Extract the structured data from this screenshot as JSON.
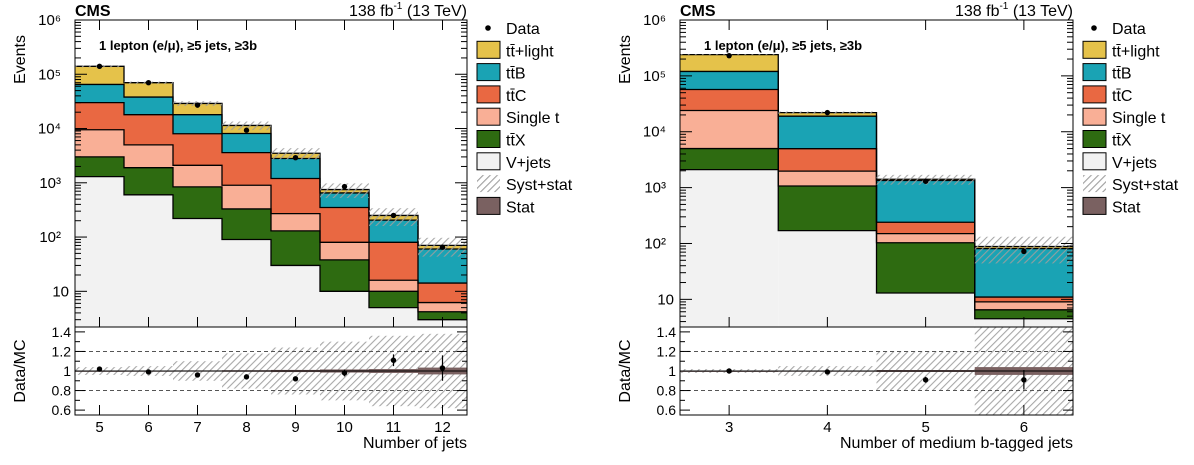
{
  "colors": {
    "ttlight": "#e5c24a",
    "ttB": "#1aa3b4",
    "ttC": "#e96842",
    "single_t": "#f9af96",
    "ttX": "#2e6b11",
    "vjets": "#f2f2f2",
    "syst": "#bdbdbd",
    "stat": "#7a6161"
  },
  "legend": {
    "entries": [
      {
        "key": "data",
        "label": "Data",
        "kind": "marker"
      },
      {
        "key": "ttlight",
        "label": "tt̄+light",
        "kind": "box"
      },
      {
        "key": "ttB",
        "label": "tt̄B",
        "kind": "box"
      },
      {
        "key": "ttC",
        "label": "tt̄C",
        "kind": "box"
      },
      {
        "key": "single_t",
        "label": "Single t",
        "kind": "box"
      },
      {
        "key": "ttX",
        "label": "tt̄X",
        "kind": "box"
      },
      {
        "key": "vjets",
        "label": "V+jets",
        "kind": "box"
      },
      {
        "key": "syst",
        "label": "Syst+stat",
        "kind": "hatch"
      },
      {
        "key": "stat",
        "label": "Stat",
        "kind": "box"
      }
    ]
  },
  "chart_data": [
    {
      "type": "bar",
      "stacked": true,
      "cms_label": "CMS",
      "lumi_label": "138 fb",
      "lumi_exponent": "-1",
      "energy_label": " (13 TeV)",
      "selection_label": "1 lepton (e/μ), ≥5 jets, ≥3b",
      "xlabel": "Number of jets",
      "ylabel": "Events",
      "ratio_ylabel": "Data/MC",
      "log_y": true,
      "ylim": [
        2.2,
        1000000
      ],
      "ratio_ylim": [
        0.55,
        1.45
      ],
      "y_tick_labels": [
        "10",
        "10²",
        "10³",
        "10⁴",
        "10⁵",
        "10⁶"
      ],
      "ratio_tick_labels": [
        "0.6",
        "0.8",
        "1",
        "1.2",
        "1.4"
      ],
      "categories": [
        "5",
        "6",
        "7",
        "8",
        "9",
        "10",
        "11",
        "12"
      ],
      "series": [
        {
          "name": "V+jets",
          "key": "vjets",
          "values": [
            1300,
            600,
            220,
            90,
            30,
            10,
            5,
            3
          ]
        },
        {
          "name": "tt̄X",
          "key": "ttX",
          "values": [
            1700,
            1300,
            620,
            240,
            100,
            28,
            5,
            1.2
          ]
        },
        {
          "name": "Single t",
          "key": "single_t",
          "values": [
            6500,
            3100,
            1260,
            570,
            140,
            42,
            6,
            2
          ]
        },
        {
          "name": "tt̄C",
          "key": "ttC",
          "values": [
            20500,
            13000,
            5900,
            2700,
            930,
            270,
            64,
            8
          ]
        },
        {
          "name": "tt̄B",
          "key": "ttB",
          "values": [
            35000,
            20000,
            10000,
            4500,
            1600,
            300,
            125,
            46
          ]
        },
        {
          "name": "tt̄+light",
          "key": "ttlight",
          "values": [
            75000,
            32000,
            11000,
            3300,
            700,
            100,
            45,
            10
          ]
        }
      ],
      "data": [
        140000,
        70000,
        27000,
        9300,
        2900,
        850,
        250,
        65
      ],
      "ratio": [
        1.02,
        0.99,
        0.96,
        0.94,
        0.92,
        0.98,
        1.11,
        1.03
      ],
      "ratio_err": [
        0.005,
        0.005,
        0.007,
        0.01,
        0.018,
        0.035,
        0.06,
        0.13
      ],
      "syst_band": [
        0.04,
        0.05,
        0.1,
        0.18,
        0.24,
        0.3,
        0.36,
        0.38
      ],
      "stat_band": [
        0.004,
        0.005,
        0.006,
        0.008,
        0.011,
        0.016,
        0.02,
        0.035
      ]
    },
    {
      "type": "bar",
      "stacked": true,
      "cms_label": "CMS",
      "lumi_label": "138 fb",
      "lumi_exponent": "-1",
      "energy_label": " (13 TeV)",
      "selection_label": "1 lepton (e/μ), ≥5 jets, ≥3b",
      "xlabel": "Number of medium b-tagged jets",
      "ylabel": "Events",
      "ratio_ylabel": "Data/MC",
      "log_y": true,
      "ylim": [
        3.2,
        1000000
      ],
      "ratio_ylim": [
        0.55,
        1.45
      ],
      "y_tick_labels": [
        "10",
        "10²",
        "10³",
        "10⁴",
        "10⁵",
        "10⁶"
      ],
      "ratio_tick_labels": [
        "0.6",
        "0.8",
        "1",
        "1.2",
        "1.4"
      ],
      "categories": [
        "3",
        "4",
        "5",
        "6"
      ],
      "series": [
        {
          "name": "V+jets",
          "key": "vjets",
          "values": [
            2100,
            170,
            13,
            4.5
          ]
        },
        {
          "name": "tt̄X",
          "key": "ttX",
          "values": [
            2900,
            900,
            90,
            2
          ]
        },
        {
          "name": "Single t",
          "key": "single_t",
          "values": [
            19000,
            900,
            47,
            2.5
          ]
        },
        {
          "name": "tt̄C",
          "key": "ttC",
          "values": [
            33000,
            3000,
            90,
            2
          ]
        },
        {
          "name": "tt̄B",
          "key": "ttB",
          "values": [
            63000,
            14000,
            1100,
            70
          ]
        },
        {
          "name": "tt̄+light",
          "key": "ttlight",
          "values": [
            120000,
            3000,
            70,
            7
          ]
        }
      ],
      "data": [
        230000,
        22000,
        1300,
        72
      ],
      "ratio": [
        1.0,
        0.99,
        0.91,
        0.91
      ],
      "ratio_err": [
        0.003,
        0.007,
        0.03,
        0.1
      ],
      "syst_band": [
        0.02,
        0.05,
        0.2,
        0.5
      ],
      "stat_band": [
        0.003,
        0.005,
        0.01,
        0.04
      ]
    }
  ]
}
